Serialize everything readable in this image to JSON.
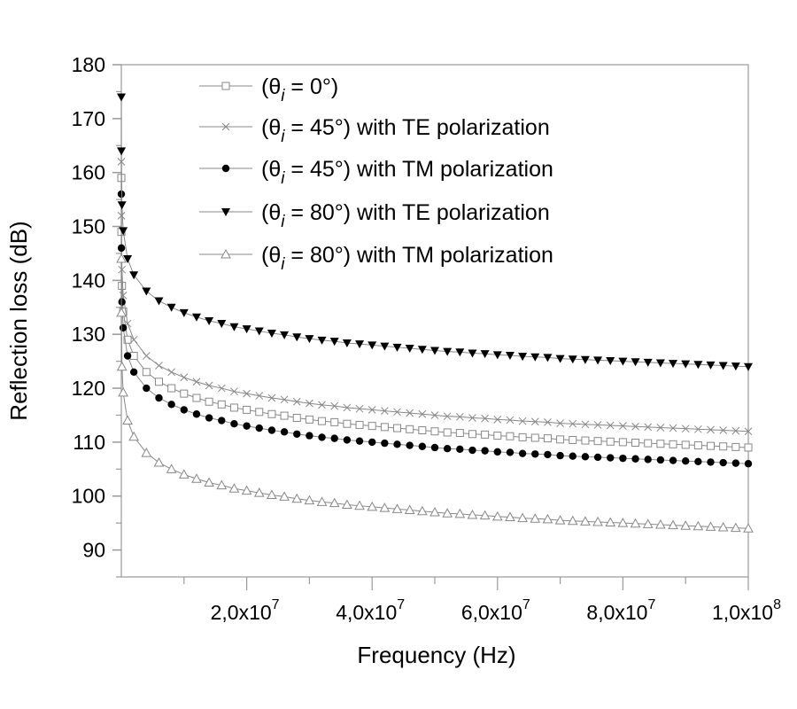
{
  "chart_data": {
    "type": "line",
    "title": "",
    "xlabel": "Frequency (Hz)",
    "ylabel": "Reflection loss (dB)",
    "xlim": [
      0,
      100000000.0
    ],
    "ylim": [
      85,
      180
    ],
    "grid": false,
    "legend_position": "top-right",
    "yticks": [
      90,
      100,
      110,
      120,
      130,
      140,
      150,
      160,
      170,
      180
    ],
    "xticks": [
      {
        "value": 20000000.0,
        "mantissa": "2,0x10",
        "exp": "7"
      },
      {
        "value": 40000000.0,
        "mantissa": "4,0x10",
        "exp": "7"
      },
      {
        "value": 60000000.0,
        "mantissa": "6,0x10",
        "exp": "7"
      },
      {
        "value": 80000000.0,
        "mantissa": "8,0x10",
        "exp": "7"
      },
      {
        "value": 100000000.0,
        "mantissa": "1,0x10",
        "exp": "8"
      }
    ],
    "x": [
      1000.0,
      10000.0,
      100000.0,
      300000.0,
      1000000.0,
      2000000.0,
      4000000.0,
      6000000.0,
      8000000.0,
      10000000.0,
      12000000.0,
      14000000.0,
      16000000.0,
      18000000.0,
      20000000.0,
      22000000.0,
      24000000.0,
      26000000.0,
      28000000.0,
      30000000.0,
      32000000.0,
      34000000.0,
      36000000.0,
      38000000.0,
      40000000.0,
      42000000.0,
      44000000.0,
      46000000.0,
      48000000.0,
      50000000.0,
      52000000.0,
      54000000.0,
      56000000.0,
      58000000.0,
      60000000.0,
      62000000.0,
      64000000.0,
      66000000.0,
      68000000.0,
      70000000.0,
      72000000.0,
      74000000.0,
      76000000.0,
      78000000.0,
      80000000.0,
      82000000.0,
      84000000.0,
      86000000.0,
      88000000.0,
      90000000.0,
      92000000.0,
      94000000.0,
      96000000.0,
      98000000.0,
      100000000.0
    ],
    "series": [
      {
        "name": "(θi = 0°)",
        "label_pre": "(θ",
        "label_sub": "i",
        "label_post": " = 0°)",
        "marker": "open-square",
        "color": "#888888",
        "values": [
          159,
          149,
          139,
          134.2,
          129,
          126,
          123,
          121.2,
          120,
          119,
          118.2,
          117.5,
          117,
          116.4,
          116,
          115.6,
          115.2,
          114.9,
          114.5,
          114.2,
          113.9,
          113.7,
          113.4,
          113.2,
          113,
          112.8,
          112.6,
          112.4,
          112.2,
          112,
          111.8,
          111.7,
          111.5,
          111.4,
          111.2,
          111.1,
          110.9,
          110.8,
          110.7,
          110.5,
          110.4,
          110.3,
          110.2,
          110.1,
          110,
          109.9,
          109.8,
          109.7,
          109.6,
          109.5,
          109.4,
          109.3,
          109.2,
          109.1,
          109
        ]
      },
      {
        "name": "(θi = 45°) with TE polarization",
        "label_pre": "(θ",
        "label_sub": "i",
        "label_post": " = 45°) with TE polarization",
        "marker": "cross",
        "color": "#888888",
        "values": [
          162,
          152,
          142,
          137.2,
          132,
          129,
          126,
          124.2,
          123,
          122,
          121.2,
          120.5,
          120,
          119.4,
          119,
          118.6,
          118.2,
          117.9,
          117.5,
          117.2,
          116.9,
          116.7,
          116.4,
          116.2,
          116,
          115.8,
          115.6,
          115.4,
          115.2,
          115,
          114.8,
          114.7,
          114.5,
          114.4,
          114.2,
          114.1,
          113.9,
          113.8,
          113.7,
          113.5,
          113.4,
          113.3,
          113.2,
          113.1,
          113,
          112.9,
          112.8,
          112.7,
          112.6,
          112.5,
          112.4,
          112.3,
          112.2,
          112.1,
          112
        ]
      },
      {
        "name": "(θi = 45°) with TM polarization",
        "label_pre": "(θ",
        "label_sub": "i",
        "label_post": " = 45°) with TM polarization",
        "marker": "filled-circle",
        "color": "#000000",
        "values": [
          156,
          146,
          136,
          131.2,
          126,
          123,
          120,
          118.2,
          117,
          116,
          115.2,
          114.5,
          114,
          113.4,
          113,
          112.6,
          112.2,
          111.9,
          111.5,
          111.2,
          110.9,
          110.7,
          110.4,
          110.2,
          110,
          109.8,
          109.6,
          109.4,
          109.2,
          109,
          108.8,
          108.7,
          108.5,
          108.4,
          108.2,
          108.1,
          107.9,
          107.8,
          107.7,
          107.5,
          107.4,
          107.3,
          107.2,
          107.1,
          107,
          106.9,
          106.8,
          106.7,
          106.6,
          106.5,
          106.4,
          106.3,
          106.2,
          106.1,
          106
        ]
      },
      {
        "name": "(θi = 80°) with TE polarization",
        "label_pre": "(θ",
        "label_sub": "i",
        "label_post": " = 80°) with TE polarization",
        "marker": "filled-down-triangle",
        "color": "#000000",
        "values": [
          174,
          164,
          154,
          149.2,
          144,
          141,
          138,
          136.2,
          135,
          134,
          133.2,
          132.5,
          132,
          131.4,
          131,
          130.6,
          130.2,
          129.9,
          129.5,
          129.2,
          128.9,
          128.7,
          128.4,
          128.2,
          128,
          127.8,
          127.6,
          127.4,
          127.2,
          127,
          126.8,
          126.7,
          126.5,
          126.4,
          126.2,
          126.1,
          125.9,
          125.8,
          125.7,
          125.5,
          125.4,
          125.3,
          125.2,
          125.1,
          125,
          124.9,
          124.8,
          124.7,
          124.6,
          124.5,
          124.4,
          124.3,
          124.2,
          124.1,
          124
        ]
      },
      {
        "name": "(θi = 80°) with TM polarization",
        "label_pre": "(θ",
        "label_sub": "i",
        "label_post": " = 80°) with TM polarization",
        "marker": "open-up-triangle",
        "color": "#888888",
        "values": [
          144,
          134,
          124,
          119.2,
          114,
          111,
          108,
          106.2,
          105,
          104,
          103.2,
          102.5,
          102,
          101.4,
          101,
          100.6,
          100.2,
          99.9,
          99.5,
          99.2,
          98.9,
          98.7,
          98.4,
          98.2,
          98,
          97.8,
          97.6,
          97.4,
          97.2,
          97,
          96.8,
          96.7,
          96.5,
          96.4,
          96.2,
          96.1,
          95.9,
          95.8,
          95.7,
          95.5,
          95.4,
          95.3,
          95.2,
          95.1,
          95,
          94.9,
          94.8,
          94.7,
          94.6,
          94.5,
          94.4,
          94.3,
          94.2,
          94.1,
          94
        ]
      }
    ]
  }
}
